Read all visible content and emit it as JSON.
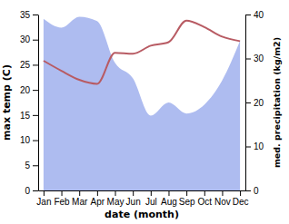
{
  "chart_data": {
    "type": "line",
    "x_label": "date (month)",
    "y_label": "max temp (C)",
    "y2_label": "med. precipitation (kg/m2)",
    "categories": [
      "Jan",
      "Feb",
      "Mar",
      "Apr",
      "May",
      "Jun",
      "Jul",
      "Aug",
      "Sep",
      "Oct",
      "Nov",
      "Dec"
    ],
    "series": [
      {
        "type": "area",
        "axis": "y2",
        "color": "#aebcf0",
        "values": [
          39,
          37,
          39.5,
          38.5,
          29,
          25.5,
          17,
          20,
          17.5,
          19.5,
          25,
          34
        ]
      },
      {
        "type": "line",
        "color": "#b85b63",
        "values": [
          25.8,
          23.8,
          22,
          21.2,
          27.4,
          27.2,
          28.8,
          29.5,
          33.8,
          32.5,
          30.6,
          29.7
        ]
      }
    ],
    "ylim": [
      0,
      35
    ],
    "yticks": [
      0,
      5,
      10,
      15,
      20,
      25,
      30,
      35
    ],
    "y2lim": [
      0,
      40
    ],
    "y2ticks": [
      0,
      10,
      20,
      30,
      40
    ]
  }
}
